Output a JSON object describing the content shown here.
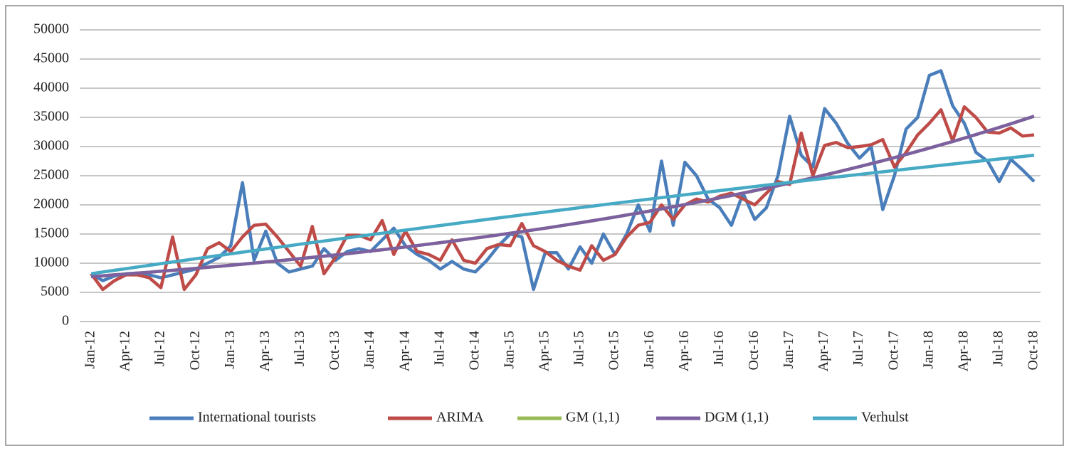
{
  "chart_data": {
    "type": "line",
    "categories": [
      "Jan-12",
      null,
      null,
      "Apr-12",
      null,
      null,
      "Jul-12",
      null,
      null,
      "Oct-12",
      null,
      null,
      "Jan-13",
      null,
      null,
      "Apr-13",
      null,
      null,
      "Jul-13",
      null,
      null,
      "Oct-13",
      null,
      null,
      "Jan-14",
      null,
      null,
      "Apr-14",
      null,
      null,
      "Jul-14",
      null,
      null,
      "Oct-14",
      null,
      null,
      "Jan-15",
      null,
      null,
      "Apr-15",
      null,
      null,
      "Jul-15",
      null,
      null,
      "Oct-15",
      null,
      null,
      "Jan-16",
      null,
      null,
      "Apr-16",
      null,
      null,
      "Jul-16",
      null,
      null,
      "Oct-16",
      null,
      null,
      "Jan-17",
      null,
      null,
      "Apr-17",
      null,
      null,
      "Jul-17",
      null,
      null,
      "Oct-17",
      null,
      null,
      "Jan-18",
      null,
      null,
      "Apr-18",
      null,
      null,
      "Jul-18",
      null,
      null,
      "Oct-18"
    ],
    "series": [
      {
        "name": "International tourists",
        "color": "#4a7ebb",
        "values": [
          8200,
          7000,
          7800,
          8200,
          8300,
          8000,
          7500,
          8000,
          8500,
          9000,
          10000,
          11000,
          13000,
          23800,
          10500,
          15500,
          10000,
          8500,
          9000,
          9500,
          12500,
          10500,
          12000,
          12500,
          12000,
          14000,
          16000,
          13000,
          11500,
          10500,
          9000,
          10300,
          9000,
          8500,
          10500,
          13000,
          15000,
          14500,
          5500,
          11800,
          11800,
          9000,
          12800,
          10000,
          15000,
          11500,
          15000,
          20000,
          15500,
          27500,
          16500,
          27300,
          25000,
          21000,
          19500,
          16500,
          22000,
          17500,
          19500,
          25000,
          35200,
          28500,
          26500,
          36500,
          34000,
          30500,
          28000,
          30000,
          19200,
          25000,
          33000,
          35000,
          42200,
          43000,
          37000,
          34000,
          29000,
          27500,
          24000,
          27800,
          26000,
          24000
        ]
      },
      {
        "name": "ARIMA",
        "color": "#be4b48",
        "values": [
          8200,
          5500,
          7000,
          8000,
          8000,
          7500,
          5800,
          14500,
          5500,
          8000,
          12500,
          13500,
          12000,
          14500,
          16500,
          16700,
          14500,
          12000,
          9500,
          16300,
          8200,
          11000,
          14800,
          14800,
          14000,
          17300,
          11500,
          15500,
          12000,
          11500,
          10500,
          14000,
          10500,
          10000,
          12500,
          13200,
          13000,
          16800,
          13000,
          12000,
          10500,
          9500,
          8800,
          13000,
          10500,
          11500,
          14500,
          16500,
          17000,
          20000,
          17500,
          20000,
          21000,
          20500,
          21500,
          22000,
          21000,
          20000,
          22000,
          24000,
          23500,
          32300,
          25000,
          30200,
          30700,
          29800,
          30000,
          30300,
          31200,
          26500,
          29000,
          32000,
          34000,
          36300,
          31000,
          36800,
          35000,
          32500,
          32300,
          33200,
          31800,
          32000
        ]
      },
      {
        "name": "GM (1,1)",
        "color": "#98b954",
        "values": [
          7700,
          7846,
          7994,
          8146,
          8300,
          8457,
          8618,
          8781,
          8947,
          9116,
          9289,
          9465,
          9644,
          9827,
          10013,
          10203,
          10396,
          10593,
          10793,
          10998,
          11206,
          11418,
          11635,
          11855,
          12080,
          12308,
          12542,
          12779,
          13021,
          13268,
          13519,
          13775,
          14036,
          14302,
          14573,
          14849,
          15130,
          15416,
          15708,
          16006,
          16309,
          16618,
          16933,
          17253,
          17580,
          17913,
          18252,
          18598,
          18950,
          19309,
          19675,
          20047,
          20427,
          20814,
          21208,
          21610,
          22019,
          22436,
          22861,
          23294,
          23735,
          24185,
          24643,
          25110,
          25585,
          26070,
          26563,
          27067,
          27579,
          28102,
          28634,
          29177,
          29729,
          30292,
          30865,
          31450,
          32046,
          32653,
          33271,
          33901,
          34543,
          35197
        ]
      },
      {
        "name": "DGM (1,1)",
        "color": "#7d60a0",
        "values": [
          7700,
          7846,
          7994,
          8146,
          8300,
          8457,
          8618,
          8781,
          8947,
          9116,
          9289,
          9465,
          9644,
          9827,
          10013,
          10203,
          10396,
          10593,
          10793,
          10998,
          11206,
          11418,
          11635,
          11855,
          12080,
          12308,
          12542,
          12779,
          13021,
          13268,
          13519,
          13775,
          14036,
          14302,
          14573,
          14849,
          15130,
          15416,
          15708,
          16006,
          16309,
          16618,
          16933,
          17253,
          17580,
          17913,
          18252,
          18598,
          18950,
          19309,
          19675,
          20047,
          20427,
          20814,
          21208,
          21610,
          22019,
          22436,
          22861,
          23294,
          23735,
          24185,
          24643,
          25110,
          25585,
          26070,
          26563,
          27067,
          27579,
          28102,
          28634,
          29177,
          29729,
          30292,
          30865,
          31450,
          32046,
          32653,
          33271,
          33901,
          34543,
          35197
        ]
      },
      {
        "name": "Verhulst",
        "color": "#46aac5",
        "values": [
          8200,
          8490,
          8778,
          9066,
          9352,
          9638,
          9922,
          10206,
          10489,
          10771,
          11051,
          11331,
          11610,
          11888,
          12165,
          12441,
          12716,
          12990,
          13263,
          13535,
          13806,
          14076,
          14345,
          14613,
          14880,
          15146,
          15411,
          15676,
          15939,
          16201,
          16463,
          16723,
          16982,
          17241,
          17498,
          17755,
          18010,
          18265,
          18518,
          18771,
          19022,
          19273,
          19523,
          19771,
          20019,
          20266,
          20512,
          20756,
          21000,
          21243,
          21485,
          21726,
          21966,
          22205,
          22443,
          22680,
          22916,
          23151,
          23385,
          23618,
          23850,
          24082,
          24312,
          24541,
          24769,
          24997,
          25223,
          25448,
          25673,
          25896,
          26119,
          26340,
          26561,
          26780,
          26999,
          27216,
          27433,
          27648,
          27863,
          28077,
          28290,
          28501
        ]
      }
    ],
    "ylim": [
      0,
      50000
    ],
    "yticks": [
      0,
      5000,
      10000,
      15000,
      20000,
      25000,
      30000,
      35000,
      40000,
      45000,
      50000
    ],
    "grid": true,
    "legend": "bottom"
  }
}
